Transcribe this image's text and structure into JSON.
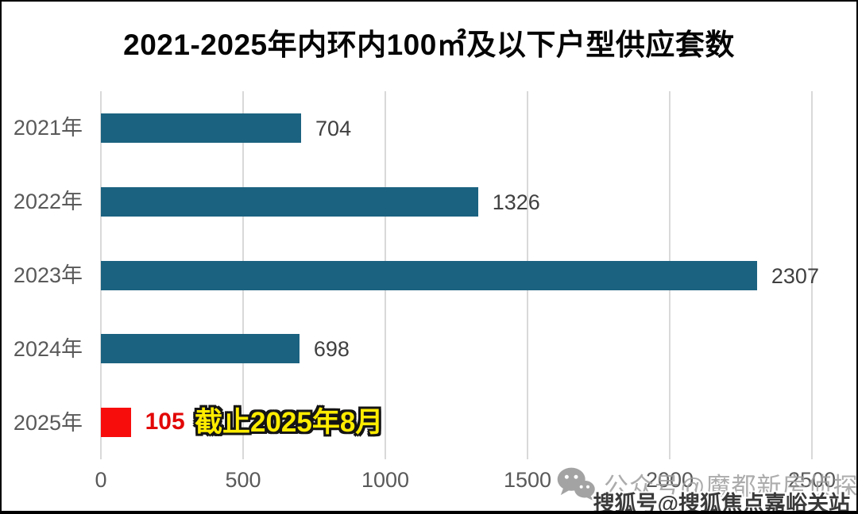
{
  "title": "2021-2025年内环内100㎡及以下户型供应套数",
  "chart_data": {
    "type": "bar",
    "orientation": "horizontal",
    "title": "2021-2025年内环内100㎡及以下户型供应套数",
    "categories": [
      "2021年",
      "2022年",
      "2023年",
      "2024年",
      "2025年"
    ],
    "values": [
      704,
      1326,
      2307,
      698,
      105
    ],
    "value_labels": [
      "704",
      "1326",
      "2307",
      "698",
      "105"
    ],
    "xlim": [
      0,
      2500
    ],
    "x_ticks": [
      "0",
      "500",
      "1000",
      "1500",
      "2000",
      "2500"
    ],
    "grid": true,
    "legend": "none",
    "bar_colors": [
      "#1b6280",
      "#1b6280",
      "#1b6280",
      "#1b6280",
      "#f80d0d"
    ],
    "value_label_colors": [
      "#404040",
      "#404040",
      "#404040",
      "#404040",
      "#e20707"
    ],
    "highlight_index": 4,
    "annotation": {
      "text": "截止2025年8月",
      "target_category": "2025年",
      "text_color": "#ffec00",
      "outline_color": "#141414"
    }
  },
  "axis": {
    "tick_label_color": "#595959",
    "grid_color": "#d9d9d9"
  },
  "watermarks": {
    "wechat": {
      "icon": "wechat-icon",
      "text": "公众号@魔都新房侦探"
    },
    "sohu": {
      "text": "搜狐号@搜狐焦点嘉峪关站"
    }
  }
}
